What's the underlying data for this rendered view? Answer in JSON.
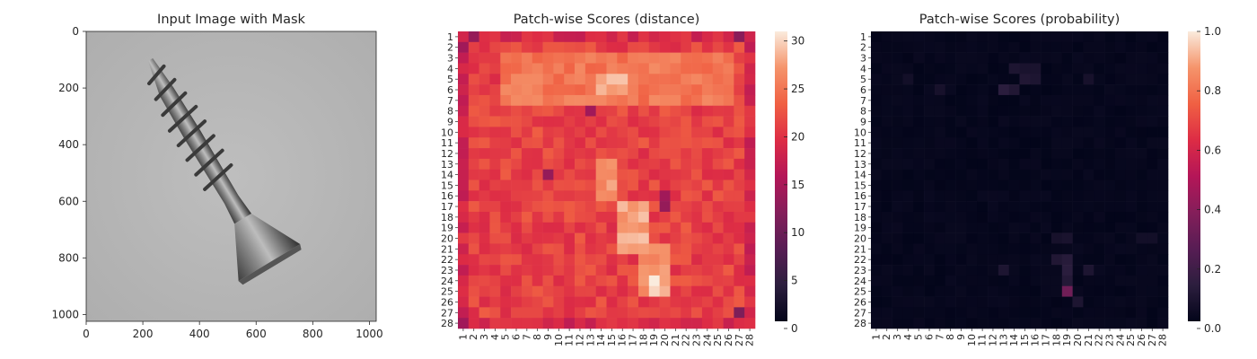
{
  "chart_data": [
    {
      "type": "image",
      "title": "Input Image with Mask",
      "x_ticks": [
        0,
        200,
        400,
        600,
        800,
        1000
      ],
      "y_ticks": [
        0,
        200,
        400,
        600,
        800,
        1000
      ],
      "xlim": [
        0,
        1024
      ],
      "ylim": [
        1024,
        0
      ],
      "object": "screw"
    },
    {
      "type": "heatmap",
      "title": "Patch-wise Scores (distance)",
      "grid": [
        28,
        28
      ],
      "x_labels": [
        "1",
        "2",
        "3",
        "4",
        "5",
        "6",
        "7",
        "8",
        "9",
        "10",
        "11",
        "12",
        "13",
        "14",
        "15",
        "16",
        "17",
        "18",
        "19",
        "20",
        "21",
        "22",
        "23",
        "24",
        "25",
        "26",
        "27",
        "28"
      ],
      "y_labels": [
        "1",
        "2",
        "3",
        "4",
        "5",
        "6",
        "7",
        "8",
        "9",
        "10",
        "11",
        "12",
        "13",
        "14",
        "15",
        "16",
        "17",
        "18",
        "19",
        "20",
        "21",
        "22",
        "23",
        "24",
        "25",
        "26",
        "27",
        "28"
      ],
      "colorbar": {
        "min": 0,
        "max": 31,
        "ticks": [
          0,
          5,
          10,
          15,
          20,
          25,
          30
        ]
      },
      "colormap": "rocket",
      "base_value": 21,
      "bright_regions": [
        {
          "rows": [
            3,
            7
          ],
          "cols": [
            5,
            26
          ],
          "value": 25
        },
        {
          "rows": [
            5,
            6
          ],
          "cols": [
            14,
            16
          ],
          "value": 28
        },
        {
          "rows": [
            13,
            16
          ],
          "cols": [
            14,
            15
          ],
          "value": 27
        },
        {
          "rows": [
            17,
            21
          ],
          "cols": [
            16,
            18
          ],
          "value": 28
        },
        {
          "rows": [
            21,
            25
          ],
          "cols": [
            18,
            20
          ],
          "value": 27
        },
        {
          "rows": [
            24,
            25
          ],
          "cols": [
            19,
            19
          ],
          "value": 31
        }
      ],
      "dark_cells": [
        {
          "row": 1,
          "col": 2,
          "value": 13
        },
        {
          "row": 2,
          "col": 1,
          "value": 14
        },
        {
          "row": 1,
          "col": 27,
          "value": 12
        },
        {
          "row": 27,
          "col": 27,
          "value": 11
        },
        {
          "row": 8,
          "col": 13,
          "value": 14
        },
        {
          "row": 14,
          "col": 9,
          "value": 13
        },
        {
          "row": 16,
          "col": 20,
          "value": 14
        },
        {
          "row": 17,
          "col": 20,
          "value": 13
        },
        {
          "row": 28,
          "col": 1,
          "value": 14
        }
      ]
    },
    {
      "type": "heatmap",
      "title": "Patch-wise Scores (probability)",
      "grid": [
        28,
        28
      ],
      "x_labels": [
        "1",
        "2",
        "3",
        "4",
        "5",
        "6",
        "7",
        "8",
        "9",
        "10",
        "11",
        "12",
        "13",
        "14",
        "15",
        "16",
        "17",
        "18",
        "19",
        "20",
        "21",
        "22",
        "23",
        "24",
        "25",
        "26",
        "27",
        "28"
      ],
      "y_labels": [
        "1",
        "2",
        "3",
        "4",
        "5",
        "6",
        "7",
        "8",
        "9",
        "10",
        "11",
        "12",
        "13",
        "14",
        "15",
        "16",
        "17",
        "18",
        "19",
        "20",
        "21",
        "22",
        "23",
        "24",
        "25",
        "26",
        "27",
        "28"
      ],
      "colorbar": {
        "min": 0.0,
        "max": 1.0,
        "ticks": [
          "0.0",
          "0.2",
          "0.4",
          "0.6",
          "0.8",
          "1.0"
        ]
      },
      "colormap": "rocket",
      "base_value": 0.0,
      "elevated_cells": [
        {
          "row": 4,
          "col": 14,
          "value": 0.08
        },
        {
          "row": 4,
          "col": 15,
          "value": 0.07
        },
        {
          "row": 4,
          "col": 16,
          "value": 0.07
        },
        {
          "row": 5,
          "col": 15,
          "value": 0.09
        },
        {
          "row": 5,
          "col": 16,
          "value": 0.08
        },
        {
          "row": 5,
          "col": 4,
          "value": 0.05
        },
        {
          "row": 6,
          "col": 7,
          "value": 0.06
        },
        {
          "row": 6,
          "col": 13,
          "value": 0.12
        },
        {
          "row": 6,
          "col": 14,
          "value": 0.09
        },
        {
          "row": 5,
          "col": 21,
          "value": 0.06
        },
        {
          "row": 20,
          "col": 18,
          "value": 0.06
        },
        {
          "row": 20,
          "col": 19,
          "value": 0.07
        },
        {
          "row": 22,
          "col": 18,
          "value": 0.09
        },
        {
          "row": 22,
          "col": 19,
          "value": 0.11
        },
        {
          "row": 23,
          "col": 13,
          "value": 0.08
        },
        {
          "row": 23,
          "col": 19,
          "value": 0.12
        },
        {
          "row": 23,
          "col": 21,
          "value": 0.08
        },
        {
          "row": 24,
          "col": 19,
          "value": 0.1
        },
        {
          "row": 25,
          "col": 19,
          "value": 0.32
        },
        {
          "row": 26,
          "col": 20,
          "value": 0.08
        },
        {
          "row": 20,
          "col": 26,
          "value": 0.05
        },
        {
          "row": 20,
          "col": 27,
          "value": 0.05
        }
      ]
    }
  ]
}
